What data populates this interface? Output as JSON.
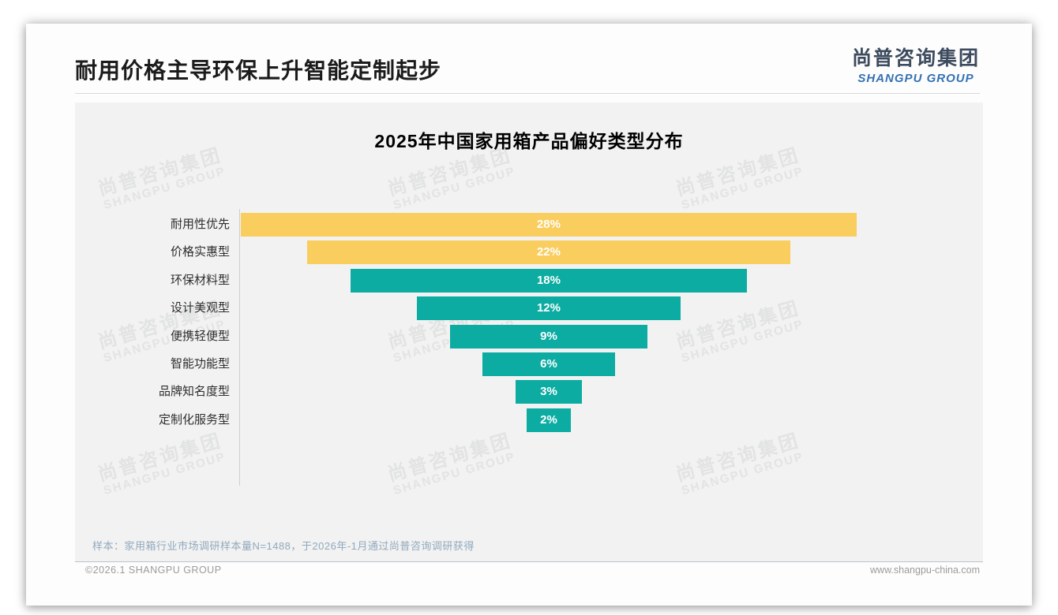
{
  "page": {
    "title": "耐用价格主导环保上升智能定制起步",
    "logo": {
      "cn": "尚普咨询集团",
      "en": "SHANGPU GROUP"
    },
    "watermark": {
      "cn": "尚普咨询集团",
      "en": "SHANGPU GROUP"
    },
    "sample_note": "样本：家用箱行业市场调研样本量N=1488，于2026年-1月通过尚普咨询调研获得",
    "footer": {
      "left": "©2026.1 SHANGPU GROUP",
      "right": "www.shangpu-china.com"
    }
  },
  "chart_data": {
    "type": "bar",
    "subtype": "centered-funnel-horizontal",
    "title": "2025年中国家用箱产品偏好类型分布",
    "categories": [
      "耐用性优先",
      "价格实惠型",
      "环保材料型",
      "设计美观型",
      "便携轻便型",
      "智能功能型",
      "品牌知名度型",
      "定制化服务型"
    ],
    "values": [
      28,
      22,
      18,
      12,
      9,
      6,
      3,
      2
    ],
    "labels": [
      "28%",
      "22%",
      "18%",
      "12%",
      "9%",
      "6%",
      "3%",
      "2%"
    ],
    "unit": "%",
    "xlabel": "",
    "ylabel": "",
    "xlim": [
      0,
      28
    ],
    "grid": false,
    "legend": false,
    "sorted": "descending",
    "colors": {
      "highlight": "#facd5f",
      "default": "#0caca2"
    },
    "highlight_count": 2,
    "value_label_color": "#ffffff",
    "panel_background": "#f1f2f1"
  }
}
